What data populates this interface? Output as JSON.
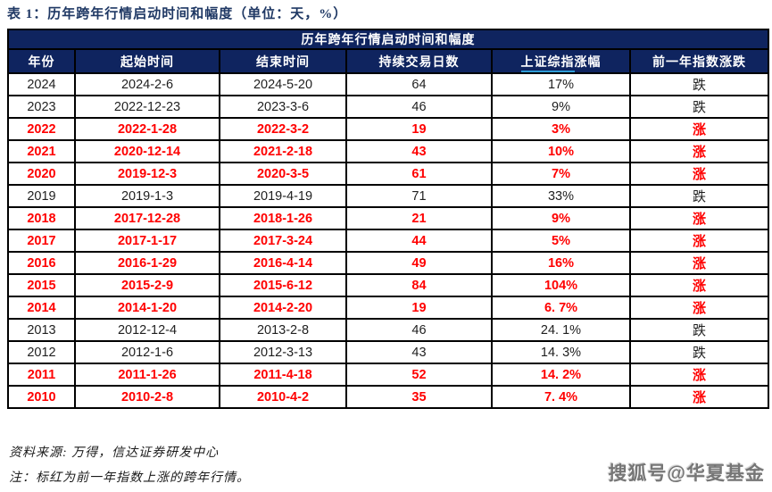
{
  "doc": {
    "title": "表 1：历年跨年行情启动时间和幅度（单位：天，%）"
  },
  "table": {
    "banner": "历年跨年行情启动时间和幅度",
    "columns": [
      {
        "label": "年份"
      },
      {
        "label": "起始时间"
      },
      {
        "label": "结束时间"
      },
      {
        "label": "持续交易日数"
      },
      {
        "label_link": "上证综指",
        "label_rest": "涨幅"
      },
      {
        "label": "前一年指数涨跌"
      }
    ],
    "rows": [
      {
        "year": "2024",
        "start": "2024-2-6",
        "end": "2024-5-20",
        "days": "64",
        "gain": "17%",
        "prev": "跌",
        "highlight": false
      },
      {
        "year": "2023",
        "start": "2022-12-23",
        "end": "2023-3-6",
        "days": "46",
        "gain": "9%",
        "prev": "跌",
        "highlight": false
      },
      {
        "year": "2022",
        "start": "2022-1-28",
        "end": "2022-3-2",
        "days": "19",
        "gain": "3%",
        "prev": "涨",
        "highlight": true
      },
      {
        "year": "2021",
        "start": "2020-12-14",
        "end": "2021-2-18",
        "days": "43",
        "gain": "10%",
        "prev": "涨",
        "highlight": true
      },
      {
        "year": "2020",
        "start": "2019-12-3",
        "end": "2020-3-5",
        "days": "61",
        "gain": "7%",
        "prev": "涨",
        "highlight": true
      },
      {
        "year": "2019",
        "start": "2019-1-3",
        "end": "2019-4-19",
        "days": "71",
        "gain": "33%",
        "prev": "跌",
        "highlight": false
      },
      {
        "year": "2018",
        "start": "2017-12-28",
        "end": "2018-1-26",
        "days": "21",
        "gain": "9%",
        "prev": "涨",
        "highlight": true
      },
      {
        "year": "2017",
        "start": "2017-1-17",
        "end": "2017-3-24",
        "days": "44",
        "gain": "5%",
        "prev": "涨",
        "highlight": true
      },
      {
        "year": "2016",
        "start": "2016-1-29",
        "end": "2016-4-14",
        "days": "49",
        "gain": "16%",
        "prev": "涨",
        "highlight": true
      },
      {
        "year": "2015",
        "start": "2015-2-9",
        "end": "2015-6-12",
        "days": "84",
        "gain": "104%",
        "prev": "涨",
        "highlight": true
      },
      {
        "year": "2014",
        "start": "2014-1-20",
        "end": "2014-2-20",
        "days": "19",
        "gain": "6. 7%",
        "prev": "涨",
        "highlight": true
      },
      {
        "year": "2013",
        "start": "2012-12-4",
        "end": "2013-2-8",
        "days": "46",
        "gain": "24. 1%",
        "prev": "跌",
        "highlight": false
      },
      {
        "year": "2012",
        "start": "2012-1-6",
        "end": "2012-3-13",
        "days": "43",
        "gain": "14. 3%",
        "prev": "跌",
        "highlight": false
      },
      {
        "year": "2011",
        "start": "2011-1-26",
        "end": "2011-4-18",
        "days": "52",
        "gain": "14. 2%",
        "prev": "涨",
        "highlight": true
      },
      {
        "year": "2010",
        "start": "2010-2-8",
        "end": "2010-4-2",
        "days": "35",
        "gain": "7. 4%",
        "prev": "涨",
        "highlight": true
      }
    ]
  },
  "footer": {
    "source": "资料来源: 万得，信达证券研发中心",
    "note": "注：标红为前一年指数上涨的跨年行情。"
  },
  "watermark": "搜狐号@华夏基金",
  "colors": {
    "header_navy": "#0f245f",
    "title_navy": "#1f3864",
    "highlight_red": "#ff0000",
    "link_blue": "#2e9bd6"
  }
}
